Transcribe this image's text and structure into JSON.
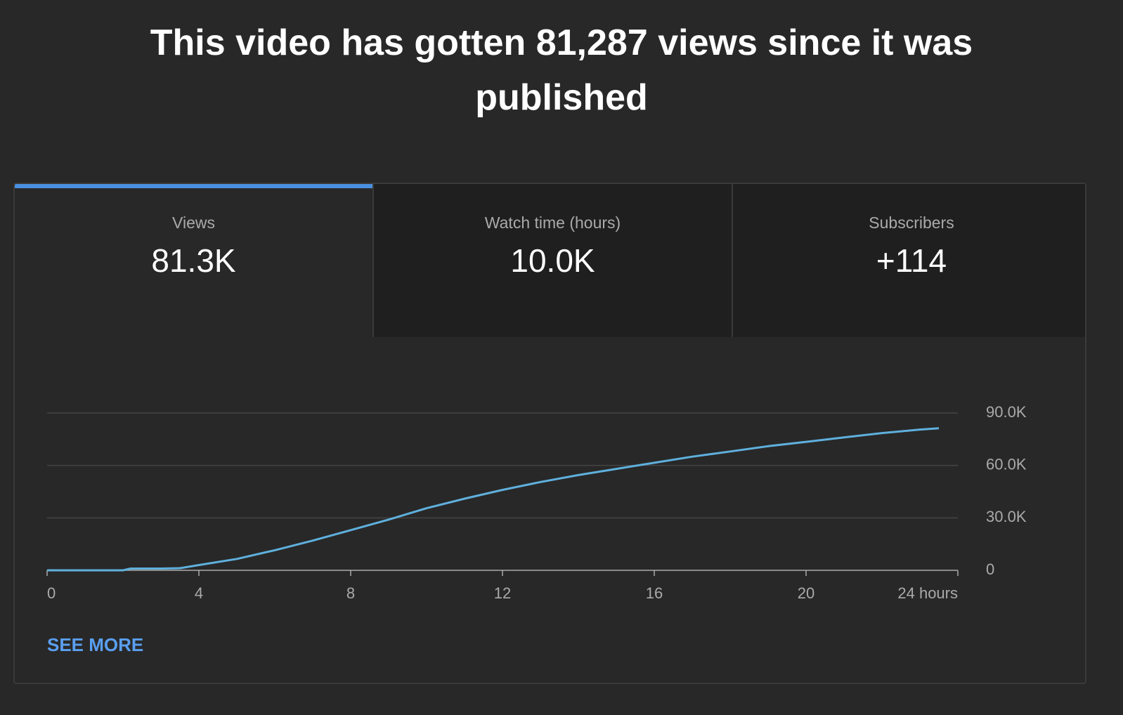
{
  "header": {
    "title": "This video has gotten 81,287 views since it was published"
  },
  "tabs": [
    {
      "label": "Views",
      "value": "81.3K"
    },
    {
      "label": "Watch time (hours)",
      "value": "10.0K"
    },
    {
      "label": "Subscribers",
      "value": "+114"
    }
  ],
  "chart_data": {
    "type": "line",
    "x": [
      0,
      1,
      2,
      2.2,
      3,
      3.5,
      4,
      5,
      6,
      7,
      8,
      9,
      10,
      11,
      12,
      13,
      14,
      15,
      16,
      17,
      18,
      19,
      20,
      21,
      22,
      23,
      23.5
    ],
    "series": [
      {
        "color": "#5fb0dd",
        "values": [
          0,
          0,
          0,
          1000,
          1000,
          1200,
          3000,
          6500,
          11500,
          17000,
          23000,
          29000,
          35500,
          41000,
          46000,
          50500,
          54500,
          58000,
          61500,
          65000,
          68000,
          71000,
          73500,
          76000,
          78500,
          80500,
          81287
        ]
      }
    ],
    "xlim": [
      0,
      24
    ],
    "xticks": [
      0,
      4,
      8,
      12,
      16,
      20,
      {
        "value": 24,
        "label": "24 hours"
      }
    ],
    "ylim": [
      0,
      90000
    ],
    "yticks": [
      0,
      {
        "value": 30000,
        "label": "30.0K"
      },
      {
        "value": 60000,
        "label": "60.0K"
      },
      {
        "value": 90000,
        "label": "90.0K"
      }
    ],
    "grid": true
  },
  "link": {
    "text": "SEE MORE"
  }
}
